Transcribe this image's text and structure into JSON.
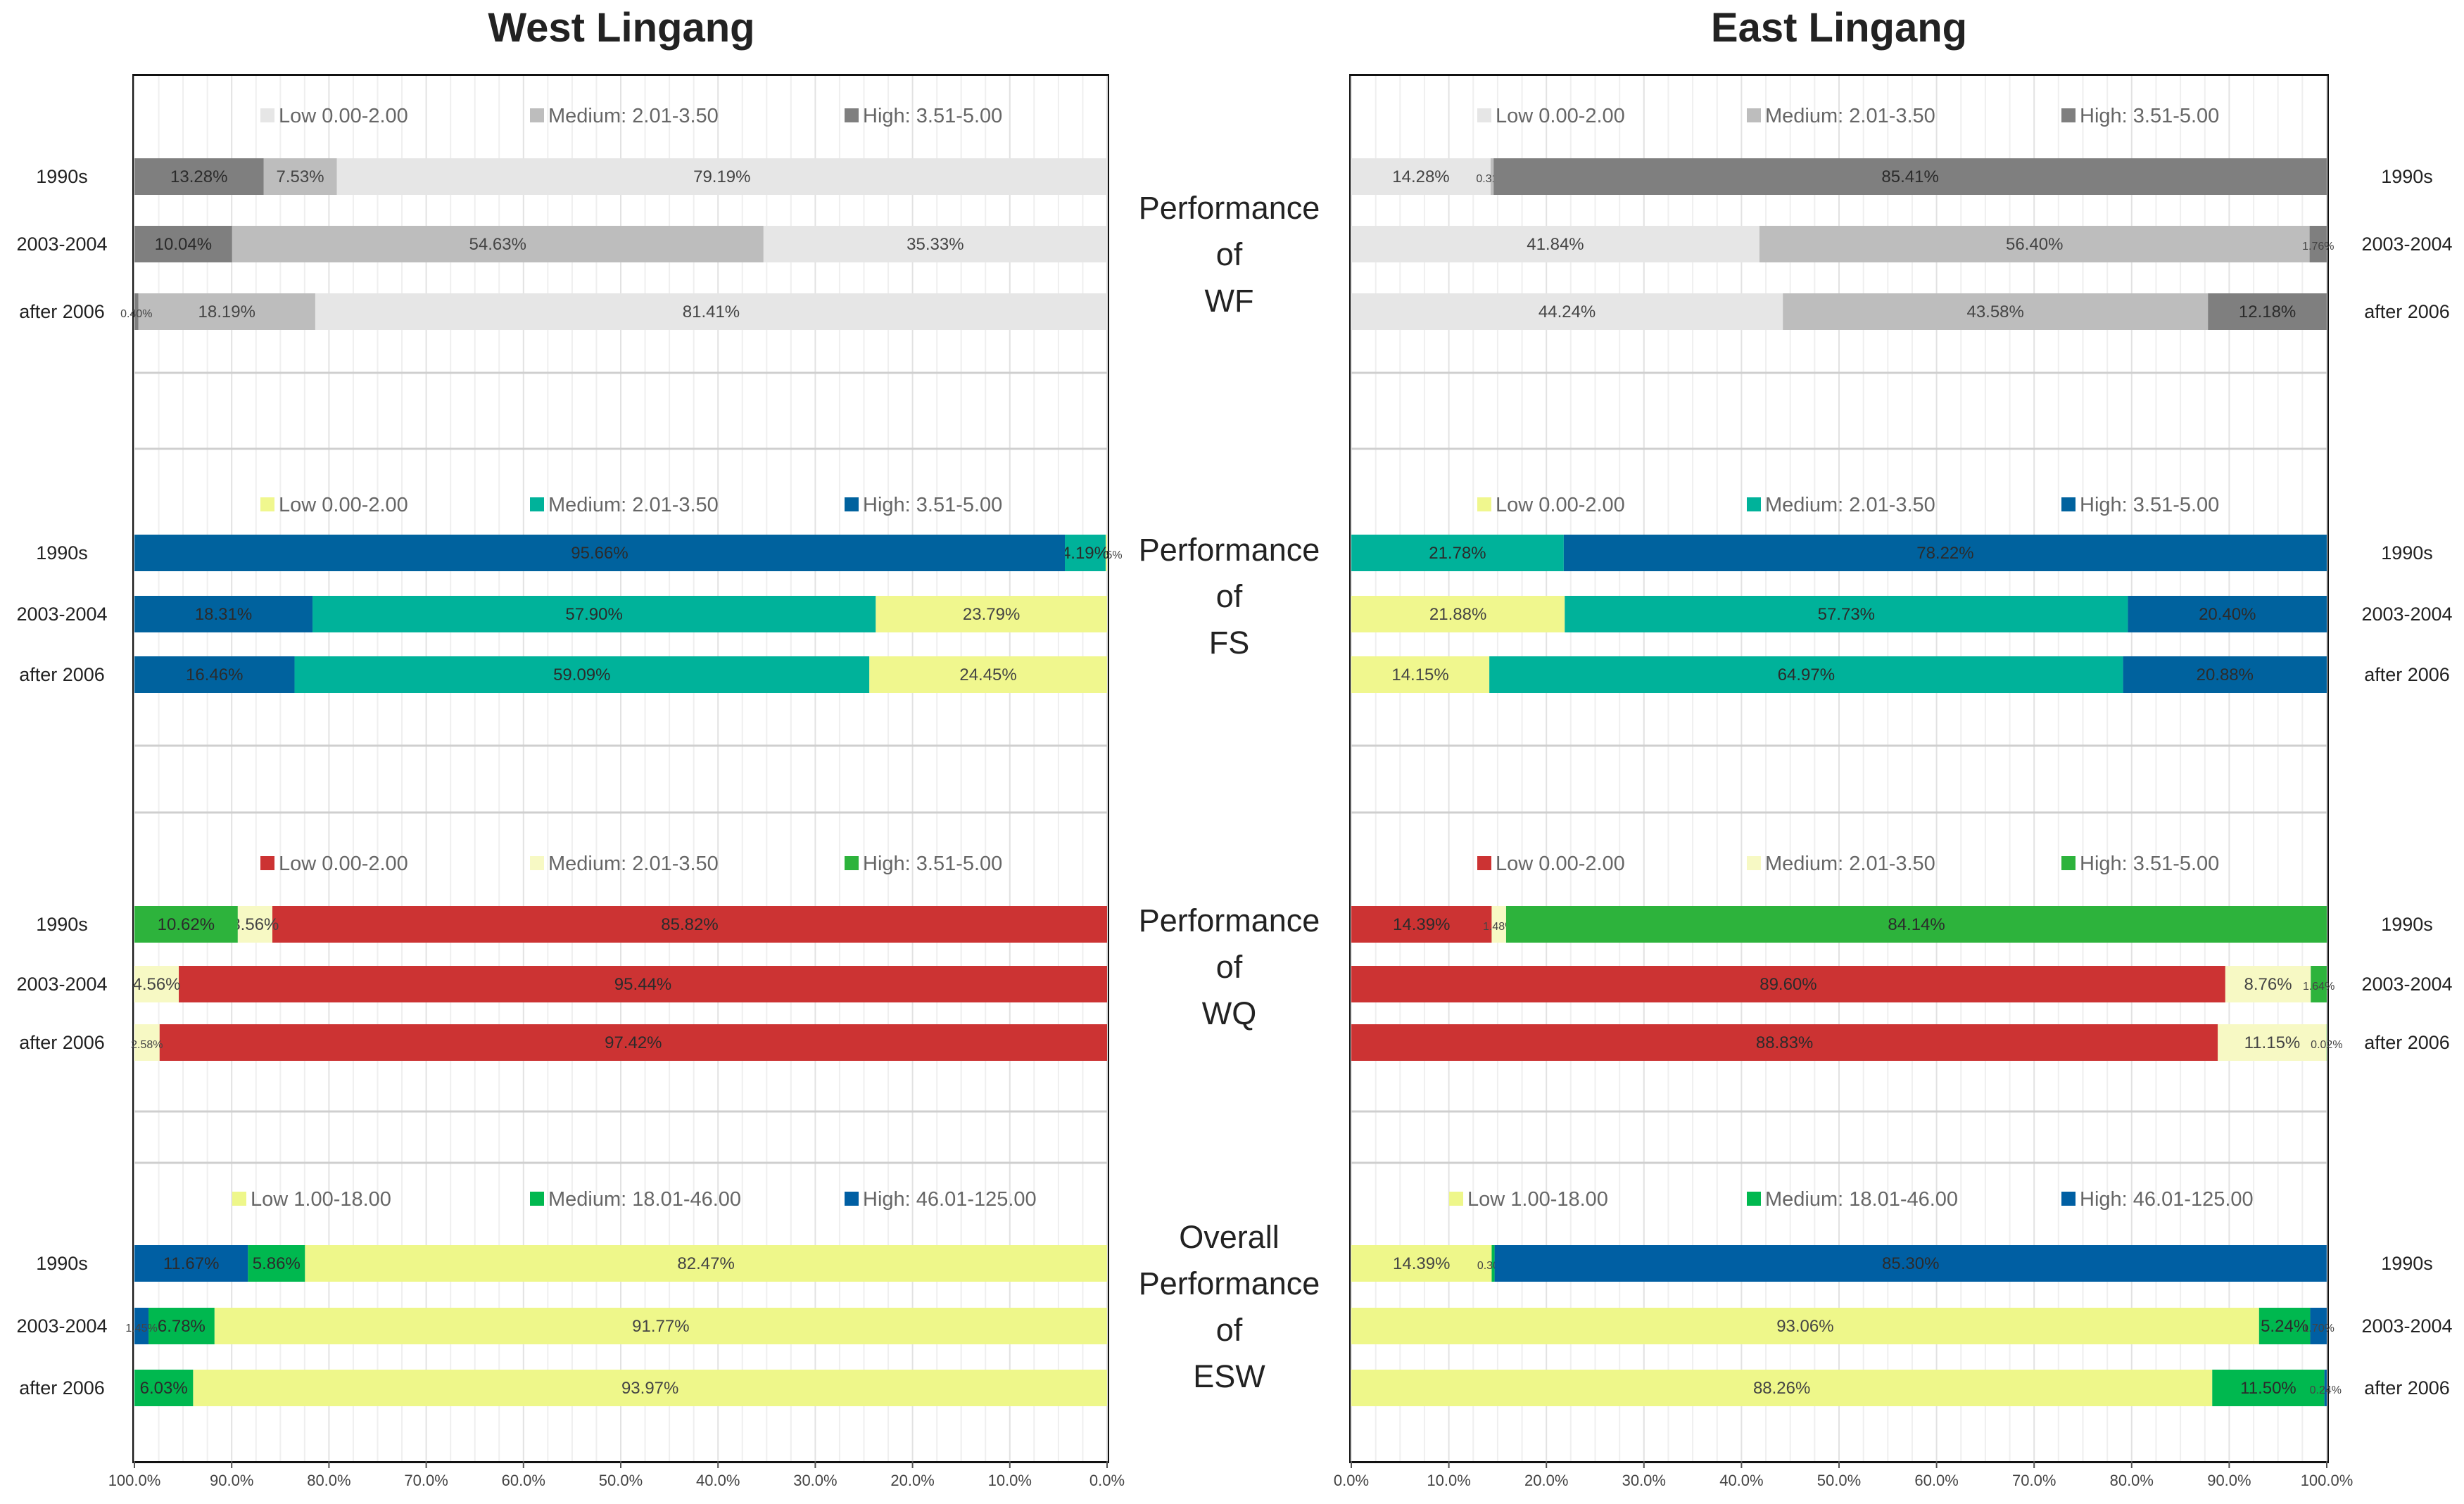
{
  "panels": [
    {
      "title": "West Lingang",
      "ticks": [
        "100.0%",
        "90.0%",
        "80.0%",
        "70.0%",
        "60.0%",
        "50.0%",
        "40.0%",
        "30.0%",
        "20.0%",
        "10.0%",
        "0.0%"
      ]
    },
    {
      "title": "East Lingang",
      "ticks": [
        "0.0%",
        "10.0%",
        "20.0%",
        "30.0%",
        "40.0%",
        "50.0%",
        "60.0%",
        "70.0%",
        "80.0%",
        "90.0%",
        "100.0%"
      ]
    }
  ],
  "middle_labels": [
    [
      "Performance",
      "of",
      "WF"
    ],
    [
      "Performance",
      "of",
      "FS"
    ],
    [
      "Performance",
      "of",
      "WQ"
    ],
    [
      "Overall",
      "Performance",
      "of",
      "ESW"
    ]
  ],
  "chart_data": [
    {
      "type": "bar",
      "title": "West Lingang",
      "orientation": "horizontal stacked, reversed x axis",
      "xlim": [
        100,
        0
      ],
      "groups": [
        {
          "label": "Performance of WF",
          "categories": [
            "1990s",
            "2003-2004",
            "after 2006"
          ],
          "legend": [
            "Low 0.00-2.00",
            "Medium: 2.01-3.50",
            "High: 3.51-5.00"
          ],
          "colors": [
            "#e6e6e6",
            "#bdbdbd",
            "#7f7f7f"
          ],
          "values": [
            [
              79.19,
              7.53,
              13.28
            ],
            [
              35.33,
              54.63,
              10.04
            ],
            [
              81.41,
              18.19,
              0.4
            ]
          ],
          "labels": [
            [
              "79.19%",
              "7.53%",
              "13.28%"
            ],
            [
              "35.33%",
              "54.63%",
              "10.04%"
            ],
            [
              "81.41%",
              "18.19%",
              "0.40%"
            ]
          ]
        },
        {
          "label": "Performance of FS",
          "categories": [
            "1990s",
            "2003-2004",
            "after 2006"
          ],
          "legend": [
            "Low 0.00-2.00",
            "Medium: 2.01-3.50",
            "High: 3.51-5.00"
          ],
          "colors": [
            "#f0f78e",
            "#00b29a",
            "#00629e"
          ],
          "values": [
            [
              0.15,
              4.19,
              95.66
            ],
            [
              23.79,
              57.9,
              18.31
            ],
            [
              24.45,
              59.09,
              16.46
            ]
          ],
          "labels": [
            [
              "0.15%",
              "4.19%",
              "95.66%"
            ],
            [
              "23.79%",
              "57.90%",
              "18.31%"
            ],
            [
              "24.45%",
              "59.09%",
              "16.46%"
            ]
          ]
        },
        {
          "label": "Performance of WQ",
          "categories": [
            "1990s",
            "2003-2004",
            "after 2006"
          ],
          "legend": [
            "Low 0.00-2.00",
            "Medium: 2.01-3.50",
            "High: 3.51-5.00"
          ],
          "colors": [
            "#cc3333",
            "#f7f9c4",
            "#2db33c"
          ],
          "values": [
            [
              85.82,
              3.56,
              10.62
            ],
            [
              95.44,
              4.56,
              0
            ],
            [
              97.42,
              2.58,
              0
            ]
          ],
          "labels": [
            [
              "85.82%",
              "3.56%",
              "10.62%"
            ],
            [
              "95.44%",
              "4.56%",
              ""
            ],
            [
              "97.42%",
              "2.58%",
              ""
            ]
          ]
        },
        {
          "label": "Overall Performance of ESW",
          "categories": [
            "1990s",
            "2003-2004",
            "after 2006"
          ],
          "legend": [
            "Low 1.00-18.00",
            "Medium: 18.01-46.00",
            "High: 46.01-125.00"
          ],
          "colors": [
            "#eef78a",
            "#00b84f",
            "#005fa3"
          ],
          "values": [
            [
              82.47,
              5.86,
              11.67
            ],
            [
              91.77,
              6.78,
              1.45
            ],
            [
              93.97,
              6.03,
              0
            ]
          ],
          "labels": [
            [
              "82.47%",
              "5.86%",
              "11.67%"
            ],
            [
              "91.77%",
              "6.78%",
              "1.45%"
            ],
            [
              "93.97%",
              "6.03%",
              ""
            ]
          ]
        }
      ]
    },
    {
      "type": "bar",
      "title": "East Lingang",
      "orientation": "horizontal stacked",
      "xlim": [
        0,
        100
      ],
      "groups": [
        {
          "label": "Performance of WF",
          "categories": [
            "1990s",
            "2003-2004",
            "after 2006"
          ],
          "legend": [
            "Low 0.00-2.00",
            "Medium: 2.01-3.50",
            "High: 3.51-5.00"
          ],
          "colors": [
            "#e6e6e6",
            "#bdbdbd",
            "#7f7f7f"
          ],
          "values": [
            [
              14.28,
              0.31,
              85.41
            ],
            [
              41.84,
              56.4,
              1.76
            ],
            [
              44.24,
              43.58,
              12.18
            ]
          ],
          "labels": [
            [
              "14.28%",
              "0.31%",
              "85.41%"
            ],
            [
              "41.84%",
              "56.40%",
              "1.76%"
            ],
            [
              "44.24%",
              "43.58%",
              "12.18%"
            ]
          ]
        },
        {
          "label": "Performance of FS",
          "categories": [
            "1990s",
            "2003-2004",
            "after 2006"
          ],
          "legend": [
            "Low 0.00-2.00",
            "Medium: 2.01-3.50",
            "High: 3.51-5.00"
          ],
          "colors": [
            "#f0f78e",
            "#00b29a",
            "#00629e"
          ],
          "values": [
            [
              0,
              21.78,
              78.22
            ],
            [
              21.88,
              57.73,
              20.4
            ],
            [
              14.15,
              64.97,
              20.88
            ]
          ],
          "labels": [
            [
              "",
              "21.78%",
              "78.22%"
            ],
            [
              "21.88%",
              "57.73%",
              "20.40%"
            ],
            [
              "14.15%",
              "64.97%",
              "20.88%"
            ]
          ]
        },
        {
          "label": "Performance of WQ",
          "categories": [
            "1990s",
            "2003-2004",
            "after 2006"
          ],
          "legend": [
            "Low 0.00-2.00",
            "Medium: 2.01-3.50",
            "High: 3.51-5.00"
          ],
          "colors": [
            "#cc3333",
            "#f7f9c4",
            "#2db33c"
          ],
          "values": [
            [
              14.39,
              1.48,
              84.14
            ],
            [
              89.6,
              8.76,
              1.64
            ],
            [
              88.83,
              11.15,
              0.02
            ]
          ],
          "labels": [
            [
              "14.39%",
              "1.48%",
              "84.14%"
            ],
            [
              "89.60%",
              "8.76%",
              "1.64%"
            ],
            [
              "88.83%",
              "11.15%",
              "0.02%"
            ]
          ]
        },
        {
          "label": "Overall Performance of ESW",
          "categories": [
            "1990s",
            "2003-2004",
            "after 2006"
          ],
          "legend": [
            "Low 1.00-18.00",
            "Medium: 18.01-46.00",
            "High: 46.01-125.00"
          ],
          "colors": [
            "#eef78a",
            "#00b84f",
            "#005fa3"
          ],
          "values": [
            [
              14.39,
              0.3,
              85.3
            ],
            [
              93.06,
              5.24,
              1.7
            ],
            [
              88.26,
              11.5,
              0.24
            ]
          ],
          "labels": [
            [
              "14.39%",
              "0.30%",
              "85.30%"
            ],
            [
              "93.06%",
              "5.24%",
              "1.70%"
            ],
            [
              "88.26%",
              "11.50%",
              "0.24%"
            ]
          ]
        }
      ]
    }
  ]
}
